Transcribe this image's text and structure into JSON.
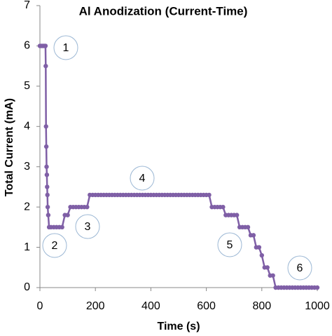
{
  "chart_data": {
    "type": "line",
    "title": "Al Anodization (Current-Time)",
    "x_label": "Time (s)",
    "y_label": "Total Current (mA)",
    "xlim": [
      0,
      1000
    ],
    "xticks": [
      0,
      200,
      400,
      600,
      800,
      1000
    ],
    "ylim": [
      0,
      7
    ],
    "yticks": [
      0,
      1,
      2,
      3,
      4,
      5,
      6,
      7
    ],
    "grid": false,
    "annotations": [
      "1",
      "2",
      "3",
      "4",
      "5",
      "6"
    ],
    "series": [
      {
        "color": "#7f5fa6",
        "x": [
          0,
          5,
          10,
          15,
          20,
          21,
          22,
          23,
          24,
          25,
          26,
          27,
          28,
          30,
          33,
          40,
          50,
          60,
          70,
          80,
          90,
          100,
          110,
          120,
          130,
          140,
          150,
          160,
          170,
          180,
          190,
          200,
          210,
          220,
          230,
          240,
          250,
          260,
          270,
          280,
          290,
          300,
          310,
          320,
          330,
          340,
          350,
          360,
          370,
          380,
          390,
          400,
          410,
          420,
          430,
          440,
          450,
          460,
          470,
          480,
          490,
          500,
          510,
          520,
          530,
          540,
          550,
          560,
          570,
          580,
          590,
          600,
          610,
          620,
          630,
          640,
          650,
          660,
          670,
          680,
          690,
          700,
          710,
          720,
          730,
          740,
          750,
          760,
          770,
          780,
          790,
          800,
          810,
          820,
          830,
          840,
          850,
          860,
          870,
          880,
          890,
          900,
          910,
          920,
          930,
          940,
          950,
          960,
          970,
          980,
          990,
          1000
        ],
        "values": [
          6,
          6,
          6,
          6,
          6,
          5.5,
          4,
          3.5,
          3,
          2.8,
          2.5,
          2.3,
          2,
          1.8,
          1.5,
          1.5,
          1.5,
          1.5,
          1.5,
          1.5,
          1.8,
          1.8,
          2,
          2,
          2,
          2,
          2,
          2,
          2,
          2.3,
          2.3,
          2.3,
          2.3,
          2.3,
          2.3,
          2.3,
          2.3,
          2.3,
          2.3,
          2.3,
          2.3,
          2.3,
          2.3,
          2.3,
          2.3,
          2.3,
          2.3,
          2.3,
          2.3,
          2.3,
          2.3,
          2.3,
          2.3,
          2.3,
          2.3,
          2.3,
          2.3,
          2.3,
          2.3,
          2.3,
          2.3,
          2.3,
          2.3,
          2.3,
          2.3,
          2.3,
          2.3,
          2.3,
          2.3,
          2.3,
          2.3,
          2.3,
          2.3,
          2,
          2,
          2,
          2,
          2,
          1.8,
          1.8,
          1.8,
          1.8,
          1.8,
          1.5,
          1.5,
          1.5,
          1.5,
          1.3,
          1.3,
          1,
          1,
          0.8,
          0.5,
          0.5,
          0.3,
          0.3,
          0,
          0,
          0,
          0,
          0,
          0,
          0,
          0,
          0,
          0,
          0,
          0,
          0,
          0,
          0,
          0
        ]
      }
    ]
  }
}
